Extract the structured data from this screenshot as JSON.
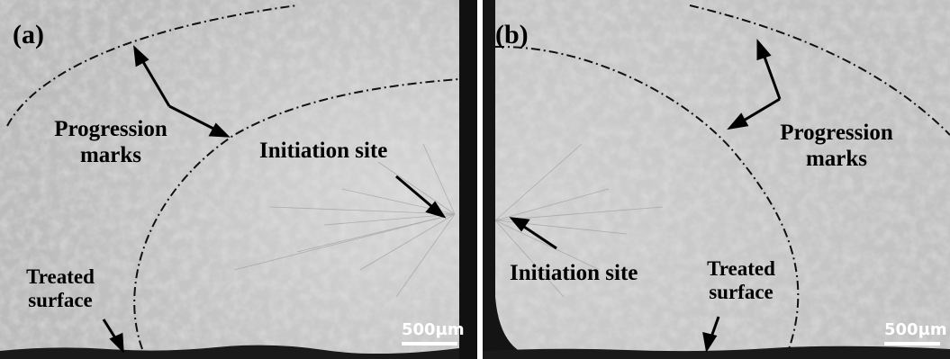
{
  "panel_a": {
    "letter": "(a)",
    "progression_line1": "Progression",
    "progression_line2": "marks",
    "initiation": "Initiation site",
    "treated_line1": "Treated",
    "treated_line2": "surface",
    "scale": "500µm"
  },
  "panel_b": {
    "letter": "(b)",
    "progression_line1": "Progression",
    "progression_line2": "marks",
    "initiation": "Initiation site",
    "treated_line1": "Treated",
    "treated_line2": "surface",
    "scale": "500µm"
  },
  "colors": {
    "surface": "#c4c4c4",
    "texture": "#9a9a9a",
    "edge": "#111111",
    "gap": "#ffffff"
  }
}
